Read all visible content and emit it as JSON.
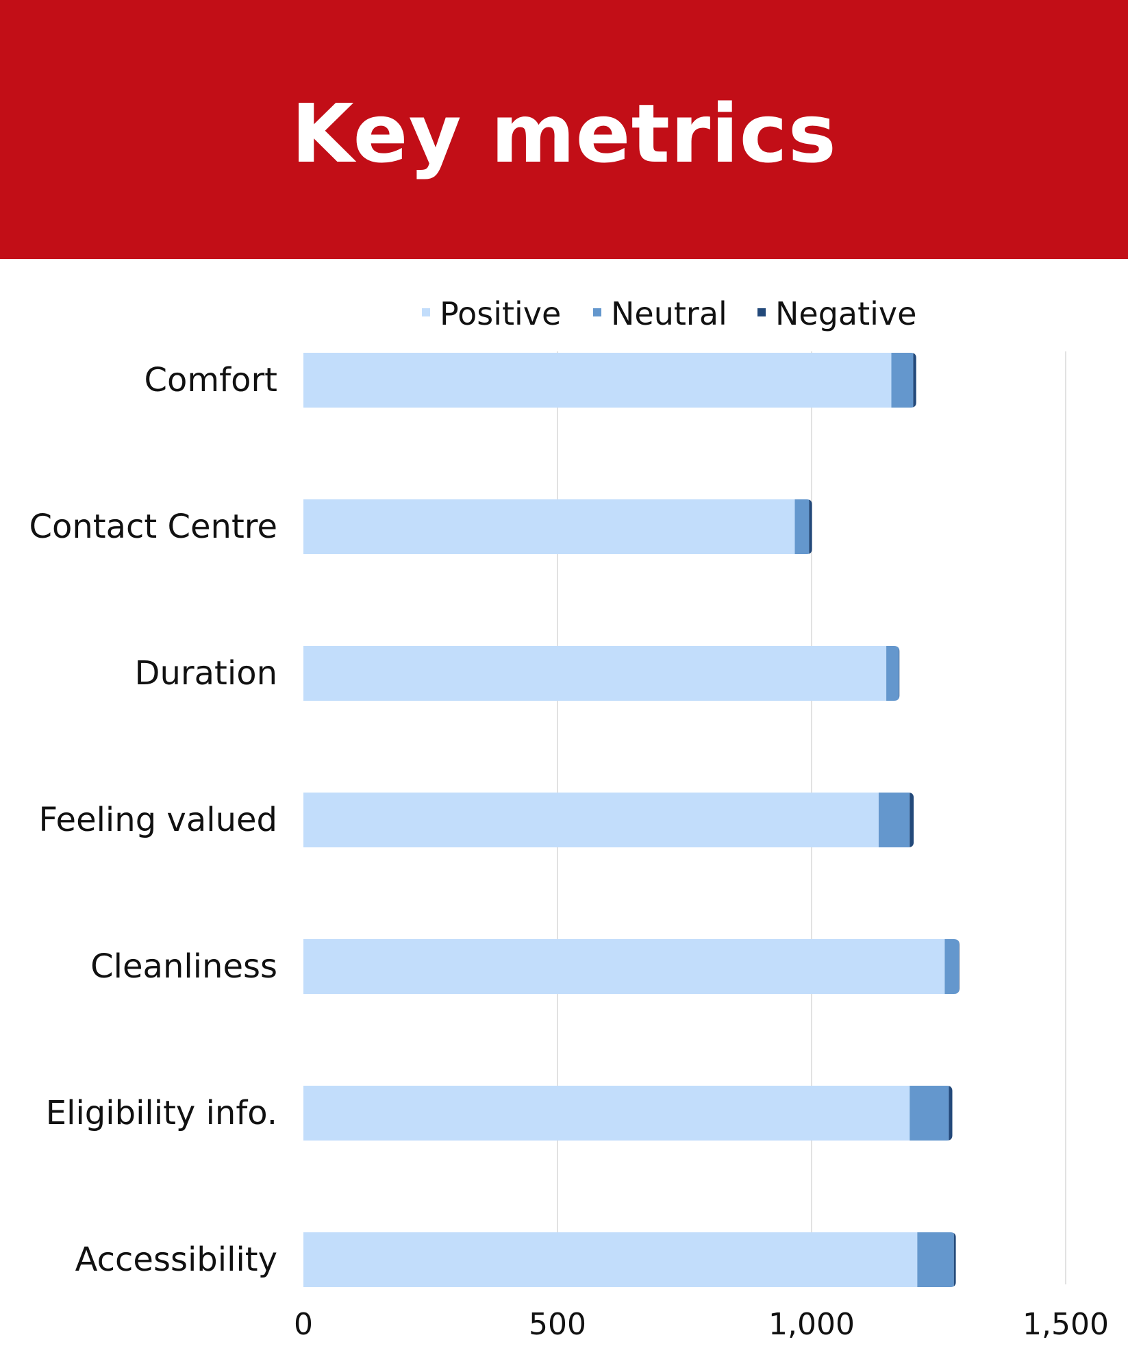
{
  "header": {
    "title": "Key metrics"
  },
  "colors": {
    "banner": "#c20e17",
    "positive": "#c2ddfb",
    "neutral": "#6497cd",
    "negative": "#23497a",
    "gridline": "#d9d9d9"
  },
  "chart_data": {
    "type": "bar",
    "orientation": "horizontal",
    "stacked": true,
    "categories": [
      "Comfort",
      "Contact Centre",
      "Duration",
      "Feeling valued",
      "Cleanliness",
      "Eligibility info.",
      "Accessibility"
    ],
    "series": [
      {
        "name": "Positive",
        "color": "#c2ddfb",
        "values": [
          1157,
          967,
          1147,
          1132,
          1262,
          1193,
          1208
        ]
      },
      {
        "name": "Neutral",
        "color": "#6497cd",
        "values": [
          43,
          28,
          25,
          61,
          28,
          77,
          72
        ]
      },
      {
        "name": "Negative",
        "color": "#23497a",
        "values": [
          6,
          6,
          1,
          8,
          1,
          7,
          4
        ]
      }
    ],
    "xlim": [
      0,
      1500
    ],
    "xticks": [
      0,
      500,
      1000,
      1500
    ],
    "xtick_labels": [
      "0",
      "500",
      "1,000",
      "1,500"
    ],
    "title": "",
    "xlabel": "",
    "ylabel": "",
    "grid": "vertical",
    "legend_position": "top"
  }
}
